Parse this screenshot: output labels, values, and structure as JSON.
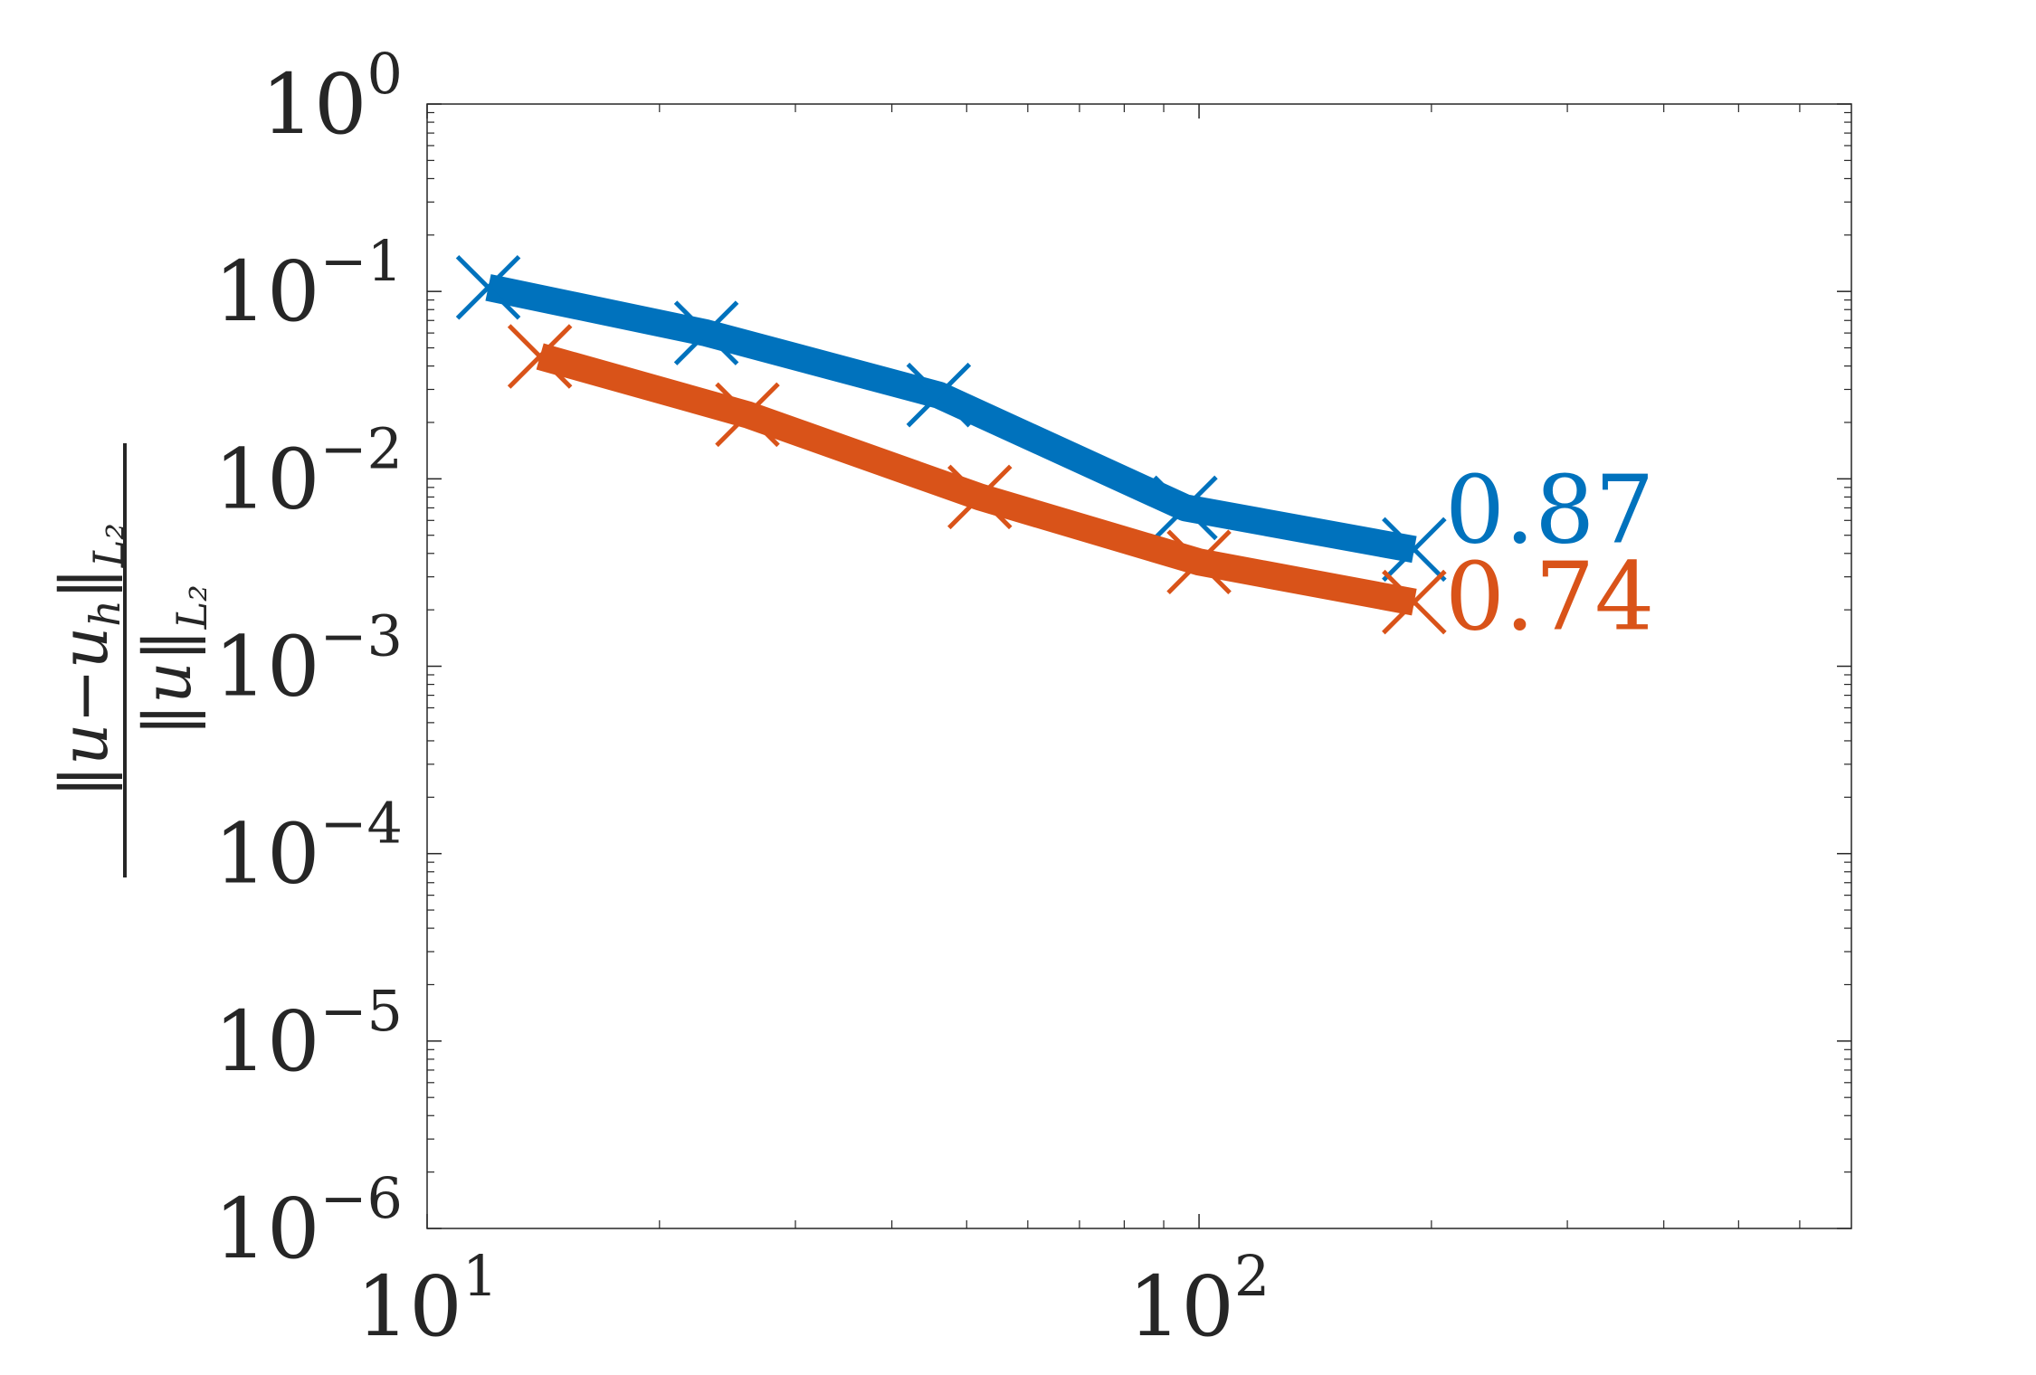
{
  "chart_data": {
    "type": "line",
    "x_scale": "log",
    "y_scale": "log",
    "xlim": [
      10,
      700
    ],
    "ylim": [
      1e-06,
      1
    ],
    "x_ticks": [
      {
        "value": 10,
        "base": "10",
        "exp": "1"
      },
      {
        "value": 100,
        "base": "10",
        "exp": "2"
      }
    ],
    "y_ticks": [
      {
        "value": 1,
        "base": "10",
        "exp": "0"
      },
      {
        "value": 0.1,
        "base": "10",
        "exp": "−1"
      },
      {
        "value": 0.01,
        "base": "10",
        "exp": "−2"
      },
      {
        "value": 0.001,
        "base": "10",
        "exp": "−3"
      },
      {
        "value": 0.0001,
        "base": "10",
        "exp": "−4"
      },
      {
        "value": 1e-05,
        "base": "10",
        "exp": "−5"
      },
      {
        "value": 1e-06,
        "base": "10",
        "exp": "−6"
      }
    ],
    "ylabel": {
      "numerator": "‖u−u",
      "numerator_sub": "h",
      "numerator_tail": "‖",
      "numerator_norm_sub": "L₂",
      "denominator": "‖u‖",
      "denominator_sub": "L₂"
    },
    "xlabel": "",
    "grid": false,
    "series": [
      {
        "color": "#0072BD",
        "marker": "x",
        "x": [
          12,
          23,
          46,
          96,
          190
        ],
        "y": [
          0.105,
          0.06,
          0.028,
          0.007,
          0.0042
        ],
        "end_label": "0.87"
      },
      {
        "color": "#D95319",
        "marker": "x",
        "x": [
          14,
          26,
          52,
          100,
          190
        ],
        "y": [
          0.045,
          0.022,
          0.008,
          0.0036,
          0.0022
        ],
        "end_label": "0.74"
      }
    ]
  }
}
